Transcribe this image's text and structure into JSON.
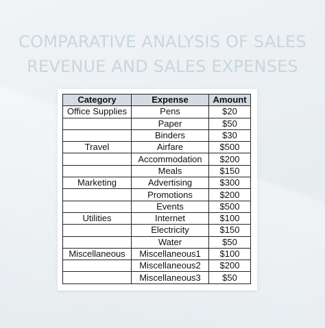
{
  "title": {
    "line1": "COMPARATIVE ANALYSIS OF SALES",
    "line2": "REVENUE AND SALES EXPENSES"
  },
  "table": {
    "headers": [
      "Category",
      "Expense",
      "Amount"
    ],
    "rows": [
      [
        "Office Supplies",
        "Pens",
        "$20"
      ],
      [
        "",
        "Paper",
        "$50"
      ],
      [
        "",
        "Binders",
        "$30"
      ],
      [
        "Travel",
        "Airfare",
        "$500"
      ],
      [
        "",
        "Accommodation",
        "$200"
      ],
      [
        "",
        "Meals",
        "$150"
      ],
      [
        "Marketing",
        "Advertising",
        "$300"
      ],
      [
        "",
        "Promotions",
        "$200"
      ],
      [
        "",
        "Events",
        "$500"
      ],
      [
        "Utilities",
        "Internet",
        "$100"
      ],
      [
        "",
        "Electricity",
        "$150"
      ],
      [
        "",
        "Water",
        "$50"
      ],
      [
        "Miscellaneous",
        "Miscellaneous1",
        "$100"
      ],
      [
        "",
        "Miscellaneous2",
        "$200"
      ],
      [
        "",
        "Miscellaneous3",
        "$50"
      ]
    ]
  },
  "colors": {
    "header_fill": "#d4dbe2",
    "title_text": "#c9d6dd",
    "background": "#eef2f4"
  }
}
